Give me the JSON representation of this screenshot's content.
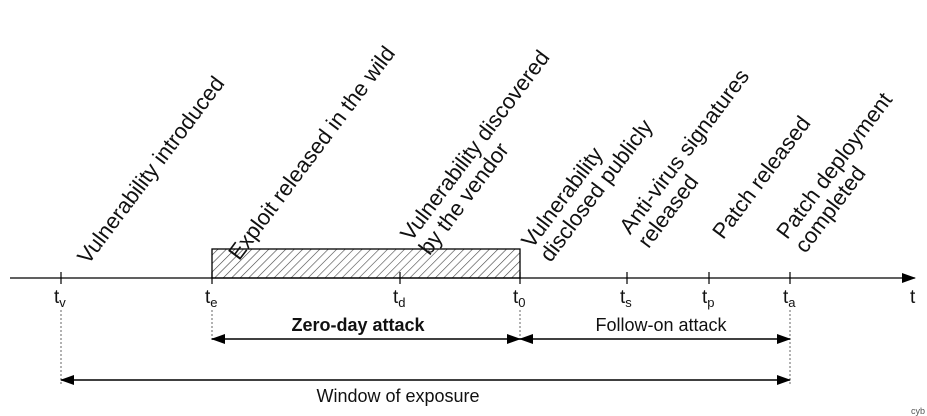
{
  "events": [
    {
      "id": "tv",
      "lines": [
        "Vulnerability introduced"
      ]
    },
    {
      "id": "te",
      "lines": [
        "Exploit released in the wild"
      ]
    },
    {
      "id": "td",
      "lines": [
        "Vulnerability discovered",
        "by the vendor"
      ]
    },
    {
      "id": "t0",
      "lines": [
        "Vulnerability",
        "disclosed publicly"
      ]
    },
    {
      "id": "ts",
      "lines": [
        "Anti-virus signatures",
        "released"
      ]
    },
    {
      "id": "tp",
      "lines": [
        "Patch released"
      ]
    },
    {
      "id": "ta",
      "lines": [
        "Patch deployment",
        "completed"
      ]
    }
  ],
  "ticks": [
    {
      "base": "t",
      "sub": "v"
    },
    {
      "base": "t",
      "sub": "e"
    },
    {
      "base": "t",
      "sub": "d"
    },
    {
      "base": "t",
      "sub": "0"
    },
    {
      "base": "t",
      "sub": "s"
    },
    {
      "base": "t",
      "sub": "p"
    },
    {
      "base": "t",
      "sub": "a"
    }
  ],
  "axis_label": "t",
  "zero_day_label": "Zero-day attack",
  "follow_on_label": "Follow-on attack",
  "window_label": "Window of exposure",
  "corner_text": "cyb"
}
